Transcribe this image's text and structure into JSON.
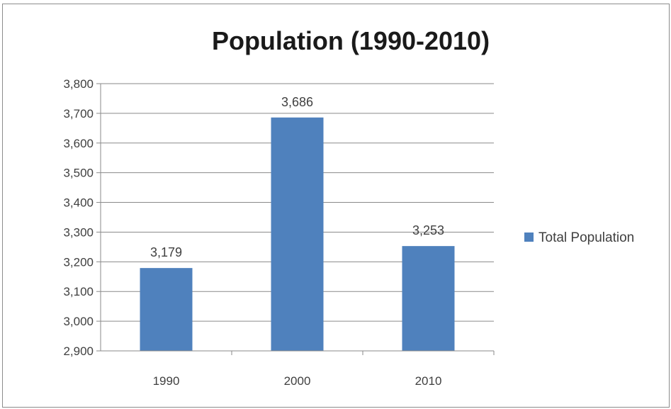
{
  "chart_data": {
    "type": "bar",
    "title": "Population (1990-2010)",
    "xlabel": "",
    "ylabel": "",
    "categories": [
      "1990",
      "2000",
      "2010"
    ],
    "series": [
      {
        "name": "Total Population",
        "values": [
          3179,
          3686,
          3253
        ],
        "color": "#4f81bd"
      }
    ],
    "data_labels": [
      "3,179",
      "3,686",
      "3,253"
    ],
    "ylim": [
      2900,
      3800
    ],
    "yticks": [
      2900,
      3000,
      3100,
      3200,
      3300,
      3400,
      3500,
      3600,
      3700,
      3800
    ],
    "ytick_labels": [
      "2,900",
      "3,000",
      "3,100",
      "3,200",
      "3,300",
      "3,400",
      "3,500",
      "3,600",
      "3,700",
      "3,800"
    ],
    "grid": true,
    "legend_position": "right"
  }
}
